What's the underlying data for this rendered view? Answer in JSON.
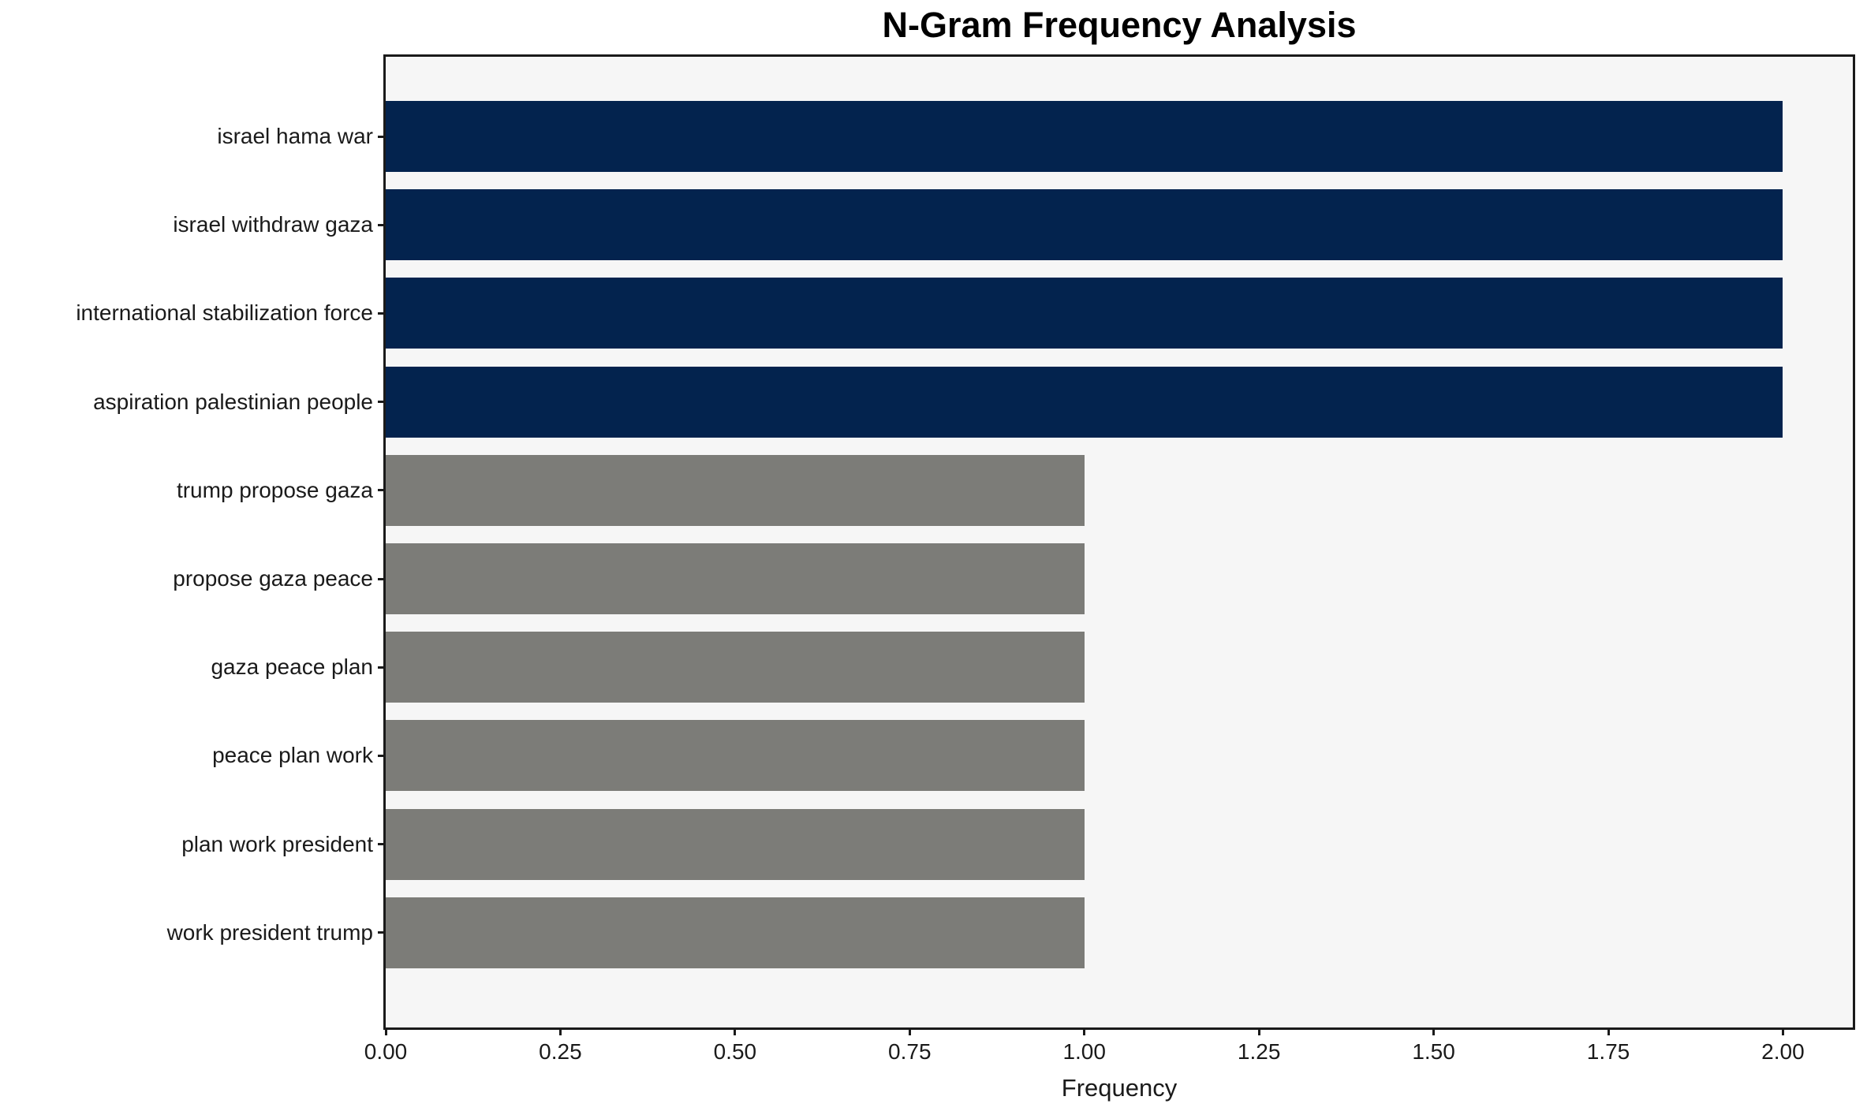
{
  "chart_data": {
    "type": "bar",
    "orientation": "horizontal",
    "title": "N-Gram Frequency Analysis",
    "xlabel": "Frequency",
    "ylabel": "",
    "categories": [
      "israel hama war",
      "israel withdraw gaza",
      "international stabilization force",
      "aspiration palestinian people",
      "trump propose gaza",
      "propose gaza peace",
      "gaza peace plan",
      "peace plan work",
      "plan work president",
      "work president trump"
    ],
    "values": [
      2,
      2,
      2,
      2,
      1,
      1,
      1,
      1,
      1,
      1
    ],
    "bar_colors": [
      "#03234e",
      "#03234e",
      "#03234e",
      "#03234e",
      "#7c7c78",
      "#7c7c78",
      "#7c7c78",
      "#7c7c78",
      "#7c7c78",
      "#7c7c78"
    ],
    "xlim": [
      0,
      2.1
    ],
    "xticks": [
      "0.00",
      "0.25",
      "0.50",
      "0.75",
      "1.00",
      "1.25",
      "1.50",
      "1.75",
      "2.00"
    ],
    "xtick_values": [
      0,
      0.25,
      0.5,
      0.75,
      1.0,
      1.25,
      1.5,
      1.75,
      2.0
    ],
    "grid": false,
    "legend": "none",
    "colors": {
      "high_frequency_bar": "#03234e",
      "low_frequency_bar": "#7c7c78",
      "plot_background": "#f6f6f6",
      "figure_background": "#ffffff",
      "spine": "#1a1a1a",
      "text": "#1a1a1a"
    }
  }
}
